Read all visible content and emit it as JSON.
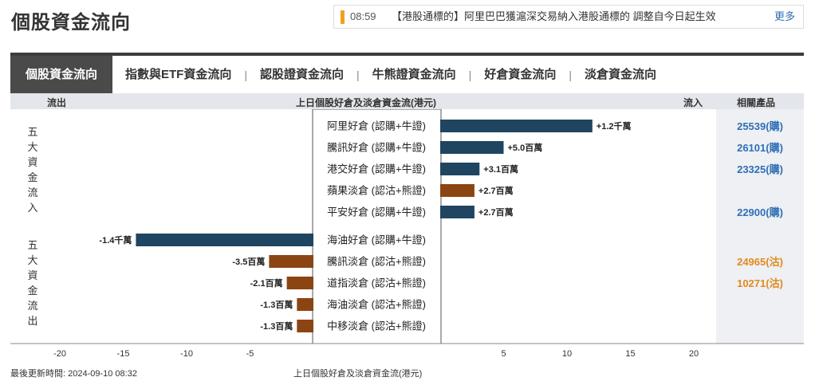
{
  "page_title": "個股資金流向",
  "news": {
    "time": "08:59",
    "text": "【港股通標的】阿里巴巴獲滬深交易納入港股通標的 調整自今日起生效",
    "more": "更多"
  },
  "tabs": [
    {
      "label": "個股資金流向",
      "active": true
    },
    {
      "label": "指數與ETF資金流向",
      "active": false
    },
    {
      "label": "認股證資金流向",
      "active": false
    },
    {
      "label": "牛熊證資金流向",
      "active": false
    },
    {
      "label": "好倉資金流向",
      "active": false
    },
    {
      "label": "淡倉資金流向",
      "active": false
    }
  ],
  "header": {
    "outflow": "流出",
    "center": "上日個股好倉及淡倉資金流(港元)",
    "inflow": "流入",
    "related": "相關產品"
  },
  "groups": {
    "inflow_label": "五大資金流入",
    "outflow_label": "五大資金流出"
  },
  "colors": {
    "long": "#1f4560",
    "short": "#8b4513",
    "buy_link": "#2f6fb5",
    "sell_link": "#e08a1e"
  },
  "chart_data": {
    "type": "bar",
    "orientation": "horizontal-diverging",
    "unit": "百萬港元",
    "xlim": [
      -20,
      20
    ],
    "xticks": [
      -20,
      -15,
      -10,
      -5,
      5,
      10,
      15,
      20
    ],
    "rows": [
      {
        "label": "阿里好倉 (認購+牛證)",
        "value": 12,
        "value_label": "+1.2千萬",
        "kind": "long",
        "product": "25539(購)"
      },
      {
        "label": "騰訊好倉 (認購+牛證)",
        "value": 5.0,
        "value_label": "+5.0百萬",
        "kind": "long",
        "product": "26101(購)"
      },
      {
        "label": "港交好倉 (認購+牛證)",
        "value": 3.1,
        "value_label": "+3.1百萬",
        "kind": "long",
        "product": "23325(購)"
      },
      {
        "label": "蘋果淡倉 (認沽+熊證)",
        "value": 2.7,
        "value_label": "+2.7百萬",
        "kind": "short",
        "product": ""
      },
      {
        "label": "平安好倉 (認購+牛證)",
        "value": 2.7,
        "value_label": "+2.7百萬",
        "kind": "long",
        "product": "22900(購)"
      },
      {
        "label": "海油好倉 (認購+牛證)",
        "value": -14,
        "value_label": "-1.4千萬",
        "kind": "long",
        "product": ""
      },
      {
        "label": "騰訊淡倉 (認沽+熊證)",
        "value": -3.5,
        "value_label": "-3.5百萬",
        "kind": "short",
        "product": "24965(沽)"
      },
      {
        "label": "道指淡倉 (認沽+熊證)",
        "value": -2.1,
        "value_label": "-2.1百萬",
        "kind": "short",
        "product": "10271(沽)"
      },
      {
        "label": "海油淡倉 (認沽+熊證)",
        "value": -1.3,
        "value_label": "-1.3百萬",
        "kind": "short",
        "product": ""
      },
      {
        "label": "中移淡倉 (認沽+熊證)",
        "value": -1.3,
        "value_label": "-1.3百萬",
        "kind": "short",
        "product": ""
      }
    ]
  },
  "footer": {
    "updated": "最後更新時間: 2024-09-10 08:32",
    "caption": "上日個股好倉及淡倉資金流(港元)"
  }
}
